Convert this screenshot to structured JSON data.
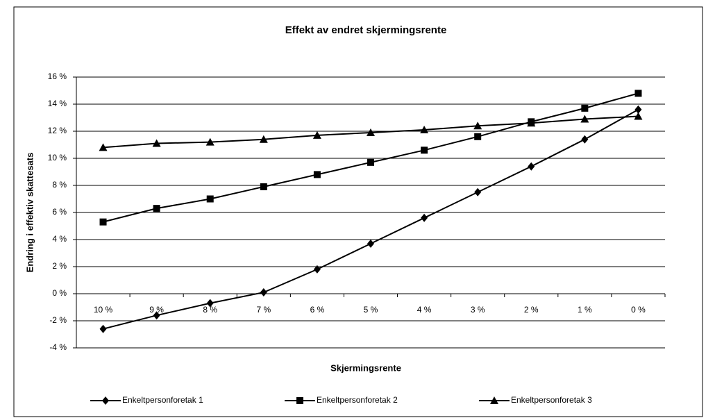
{
  "chart_data": {
    "type": "line",
    "title": "Effekt av endret skjermingsrente",
    "x_label": "Skjermingsrente",
    "y_label": "Endring i effektiv skattesats",
    "categories": [
      "10 %",
      "9 %",
      "8 %",
      "7 %",
      "6 %",
      "5 %",
      "4 %",
      "3 %",
      "2 %",
      "1 %",
      "0 %"
    ],
    "series": [
      {
        "name": "Enkeltpersonforetak 1",
        "color": "#000000",
        "marker": "diamond",
        "values": [
          -2.6,
          -1.6,
          -0.7,
          0.1,
          1.8,
          3.7,
          5.6,
          7.5,
          9.4,
          11.4,
          13.6
        ]
      },
      {
        "name": "Enkeltpersonforetak 2",
        "color": "#000000",
        "marker": "square",
        "values": [
          5.3,
          6.3,
          7.0,
          7.9,
          8.8,
          9.7,
          10.6,
          11.6,
          12.7,
          13.7,
          14.8
        ]
      },
      {
        "name": "Enkeltpersonforetak 3",
        "color": "#000000",
        "marker": "triangle",
        "values": [
          10.8,
          11.1,
          11.2,
          11.4,
          11.7,
          11.9,
          12.1,
          12.4,
          12.6,
          12.9,
          13.1
        ]
      }
    ],
    "ylim": [
      -4,
      16
    ],
    "yticks": [
      {
        "value": -4,
        "label": "-4 %"
      },
      {
        "value": -2,
        "label": "-2 %"
      },
      {
        "value": 0,
        "label": "0 %"
      },
      {
        "value": 2,
        "label": "2 %"
      },
      {
        "value": 4,
        "label": "4 %"
      },
      {
        "value": 6,
        "label": "6 %"
      },
      {
        "value": 8,
        "label": "8 %"
      },
      {
        "value": 10,
        "label": "10 %"
      },
      {
        "value": 12,
        "label": "12 %"
      },
      {
        "value": 14,
        "label": "14 %"
      },
      {
        "value": 16,
        "label": "16 %"
      }
    ],
    "grid": true,
    "legend": "bottom"
  }
}
